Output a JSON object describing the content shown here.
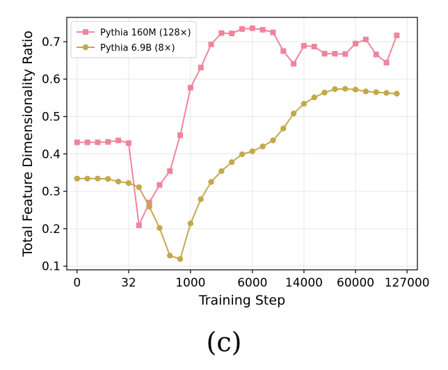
{
  "caption": "(c)",
  "chart_data": {
    "type": "line",
    "title": "",
    "xlabel": "Training Step",
    "ylabel": "Total Feature Dimensionality Ratio",
    "ylim": [
      0.09,
      0.765
    ],
    "yticks": [
      0.1,
      0.2,
      0.3,
      0.4,
      0.5,
      0.6,
      0.7
    ],
    "x_index_range": [
      -1,
      33
    ],
    "x_ticks": [
      {
        "index": 0,
        "label": "0"
      },
      {
        "index": 5,
        "label": "32"
      },
      {
        "index": 11,
        "label": "1000"
      },
      {
        "index": 17,
        "label": "6000"
      },
      {
        "index": 22,
        "label": "14000"
      },
      {
        "index": 27,
        "label": "60000"
      },
      {
        "index": 32,
        "label": "127000"
      }
    ],
    "grid": true,
    "legend_position": "top-left",
    "series": [
      {
        "name": "Pythia 160M (128×)",
        "color": "#f0849c",
        "marker": "square",
        "values": [
          0.431,
          0.431,
          0.431,
          0.432,
          0.436,
          0.429,
          0.209,
          0.27,
          0.317,
          0.354,
          0.45,
          0.577,
          0.631,
          0.693,
          0.723,
          0.722,
          0.734,
          0.736,
          0.732,
          0.725,
          0.675,
          0.641,
          0.689,
          0.687,
          0.668,
          0.668,
          0.667,
          0.695,
          0.706,
          0.666,
          0.644,
          0.717
        ]
      },
      {
        "name": "Pythia 6.9B (8×)",
        "color": "#c4a84c",
        "marker": "circle",
        "values": [
          0.334,
          0.334,
          0.334,
          0.333,
          0.326,
          0.322,
          0.311,
          0.259,
          0.202,
          0.128,
          0.119,
          0.214,
          0.279,
          0.325,
          0.354,
          0.378,
          0.399,
          0.407,
          0.42,
          0.436,
          0.468,
          0.508,
          0.534,
          0.551,
          0.564,
          0.573,
          0.574,
          0.572,
          0.567,
          0.565,
          0.563,
          0.561
        ]
      }
    ]
  }
}
